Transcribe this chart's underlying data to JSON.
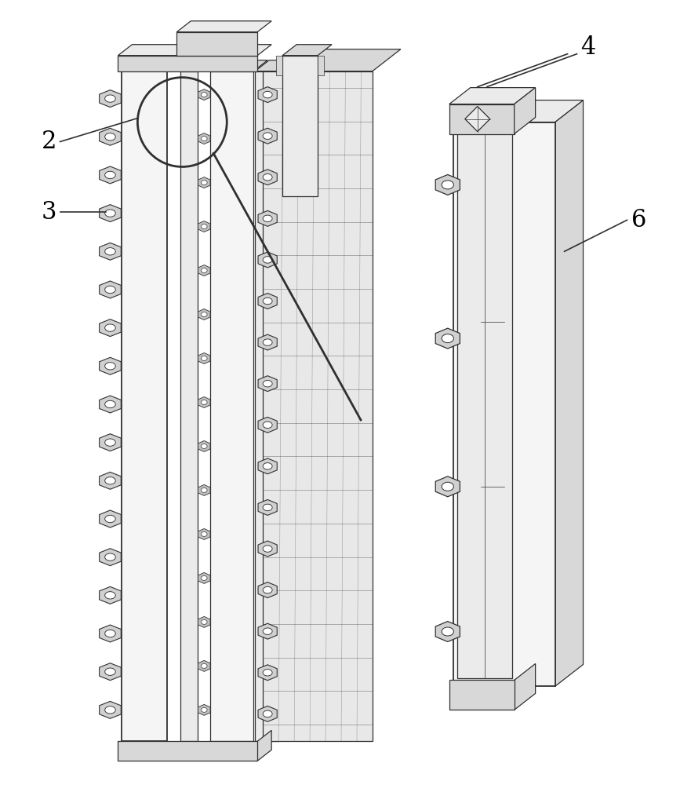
{
  "bg": "#ffffff",
  "lc": "#303030",
  "lc2": "#505050",
  "fill_white": "#ffffff",
  "fill_vlight": "#f5f5f5",
  "fill_light": "#ebebeb",
  "fill_mid": "#d8d8d8",
  "fill_dark": "#c0c0c0",
  "fill_wall": "#e8e8e8",
  "fill_nut": "#d0d0d0"
}
